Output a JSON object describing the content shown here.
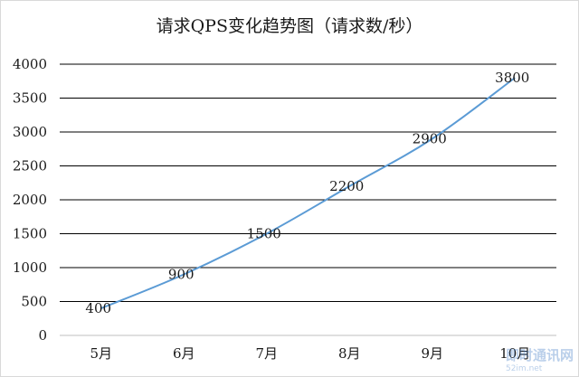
{
  "chart_data": {
    "type": "line",
    "title": "请求QPS变化趋势图（请求数/秒）",
    "xlabel": "",
    "ylabel": "",
    "categories": [
      "5月",
      "6月",
      "7月",
      "8月",
      "9月",
      "10月"
    ],
    "series": [
      {
        "values": [
          400,
          900,
          1500,
          2200,
          2900,
          3800
        ]
      }
    ],
    "data_labels": [
      "400",
      "900",
      "1500",
      "2200",
      "2900",
      "3800"
    ],
    "yticks": [
      "0",
      "500",
      "1000",
      "1500",
      "2000",
      "2500",
      "3000",
      "3500",
      "4000"
    ],
    "ylim": [
      0,
      4000
    ],
    "grid": true,
    "legend": "none",
    "line_color": "#5b9bd5"
  },
  "watermark": {
    "text": "即时通讯网",
    "sub": "52im.net"
  }
}
